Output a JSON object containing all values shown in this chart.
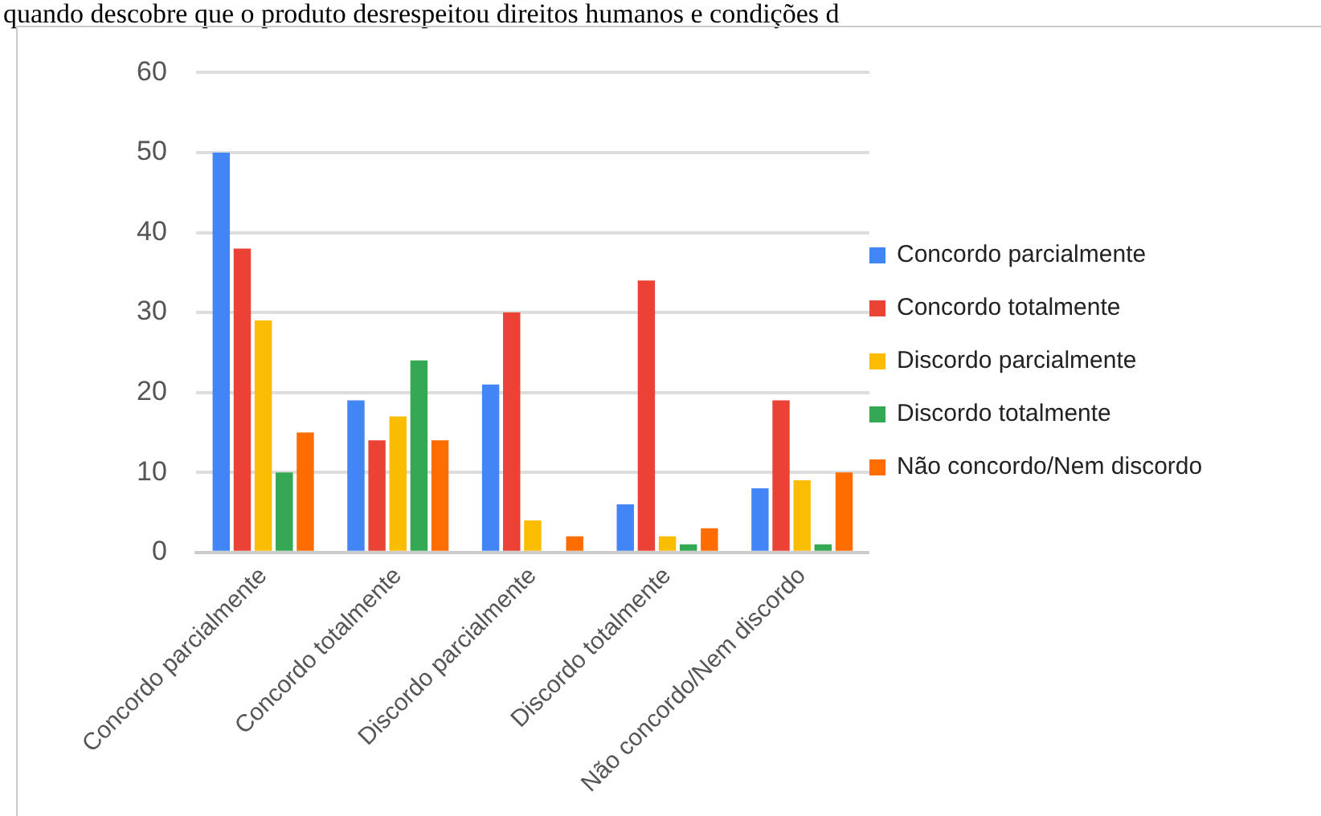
{
  "chart_data": {
    "type": "bar",
    "title": "quando descobre que o produto desrespeitou direitos humanos e condições d",
    "categories": [
      "Concordo parcialmente",
      "Concordo totalmente",
      "Discordo parcialmente",
      "Discordo totalmente",
      "Não concordo/Nem discordo"
    ],
    "series": [
      {
        "name": "Concordo parcialmente",
        "color": "#4285f4",
        "values": [
          50,
          19,
          21,
          6,
          8
        ]
      },
      {
        "name": "Concordo totalmente",
        "color": "#ea4335",
        "values": [
          38,
          14,
          30,
          34,
          19
        ]
      },
      {
        "name": "Discordo parcialmente",
        "color": "#fbbc04",
        "values": [
          29,
          17,
          4,
          2,
          9
        ]
      },
      {
        "name": "Discordo totalmente",
        "color": "#34a853",
        "values": [
          10,
          24,
          0,
          1,
          1
        ]
      },
      {
        "name": "Não concordo/Nem discordo",
        "color": "#ff6d01",
        "values": [
          15,
          14,
          2,
          3,
          10
        ]
      }
    ],
    "ylim": [
      0,
      60
    ],
    "yticks": [
      0,
      10,
      20,
      30,
      40,
      50,
      60
    ],
    "grid": "y",
    "legend": "right"
  }
}
